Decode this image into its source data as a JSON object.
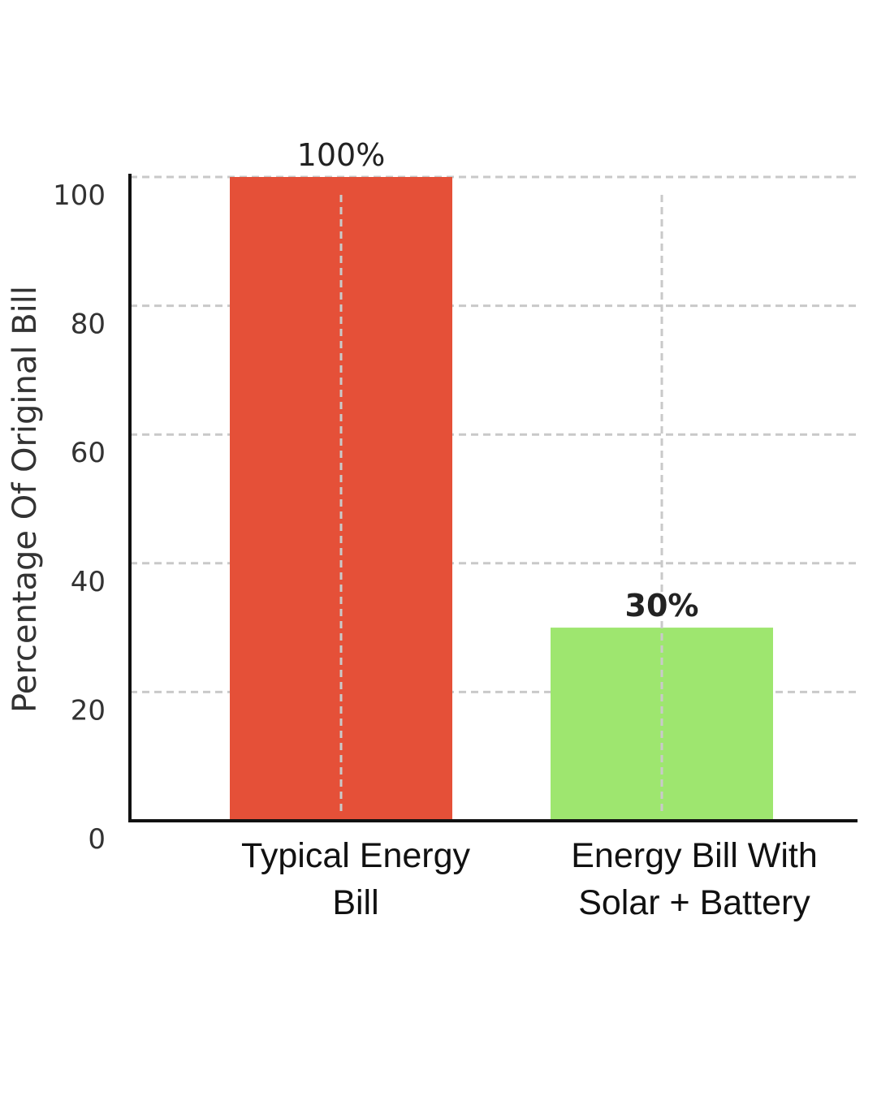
{
  "chart_data": {
    "type": "bar",
    "categories": [
      [
        "Typical Energy",
        "Bill"
      ],
      [
        "Energy Bill With",
        "Solar + Battery"
      ]
    ],
    "values": [
      100,
      30
    ],
    "data_labels": [
      "100%",
      "30%"
    ],
    "bar_colors": [
      "#e55038",
      "#9ee66f"
    ],
    "data_label_weights": [
      "normal",
      "bold"
    ],
    "ylabel": "Percentage Of Original Bill",
    "ylim": [
      0,
      100
    ],
    "y_ticks": [
      0,
      20,
      40,
      60,
      80,
      100
    ],
    "grid": true,
    "grid_style": "dashed"
  }
}
